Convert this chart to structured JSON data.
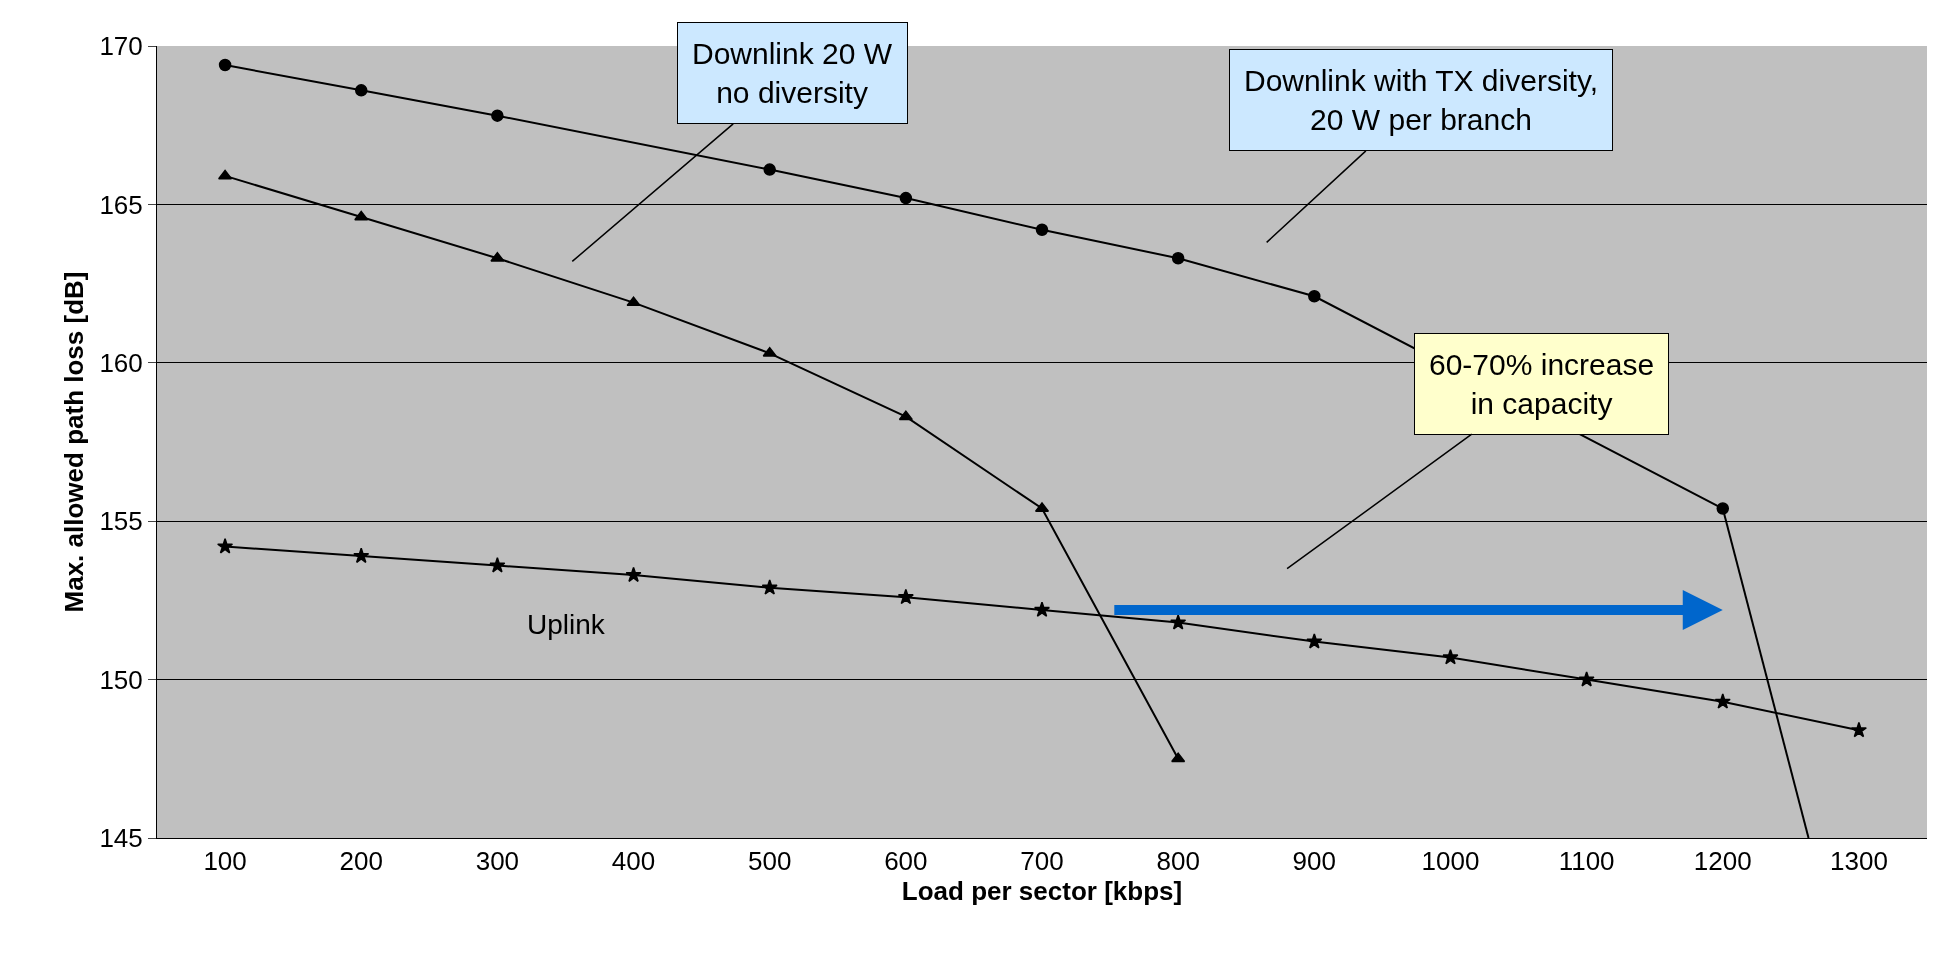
{
  "chart_data": {
    "type": "line",
    "xlabel": "Load per sector [kbps]",
    "ylabel": "Max. allowed path loss [dB]",
    "x": [
      100,
      200,
      300,
      400,
      500,
      600,
      700,
      800,
      900,
      1000,
      1100,
      1200,
      1300
    ],
    "xlim": [
      50,
      1350
    ],
    "xticks": [
      100,
      200,
      300,
      400,
      500,
      600,
      700,
      800,
      900,
      1000,
      1100,
      1200,
      1300
    ],
    "ylim": [
      145,
      170
    ],
    "yticks": [
      145,
      150,
      155,
      160,
      165,
      170
    ],
    "grid": "y",
    "legend": false,
    "series": [
      {
        "color": "#000000",
        "marker": "circle",
        "values": [
          169.4,
          168.6,
          167.8,
          null,
          166.1,
          165.2,
          164.2,
          163.3,
          162.1,
          null,
          null,
          155.4,
          null
        ]
      },
      {
        "color": "#000000",
        "marker": "none",
        "x": [
          1200,
          1263
        ],
        "values": [
          155.4,
          145
        ]
      },
      {
        "color": "#000000",
        "marker": "triangle",
        "values": [
          165.9,
          164.6,
          163.3,
          161.9,
          160.3,
          158.3,
          155.4,
          147.5,
          null,
          null,
          null,
          null,
          null
        ]
      },
      {
        "color": "#000000",
        "marker": "star",
        "values": [
          154.2,
          153.9,
          153.6,
          153.3,
          152.9,
          152.6,
          152.2,
          151.8,
          151.2,
          150.7,
          150.0,
          149.3,
          148.4
        ]
      }
    ],
    "annotations": [
      "Downlink 20 W\nno diversity",
      "Downlink with TX diversity,\n20 W per branch",
      "60-70% increase\nin capacity",
      "Uplink"
    ]
  }
}
